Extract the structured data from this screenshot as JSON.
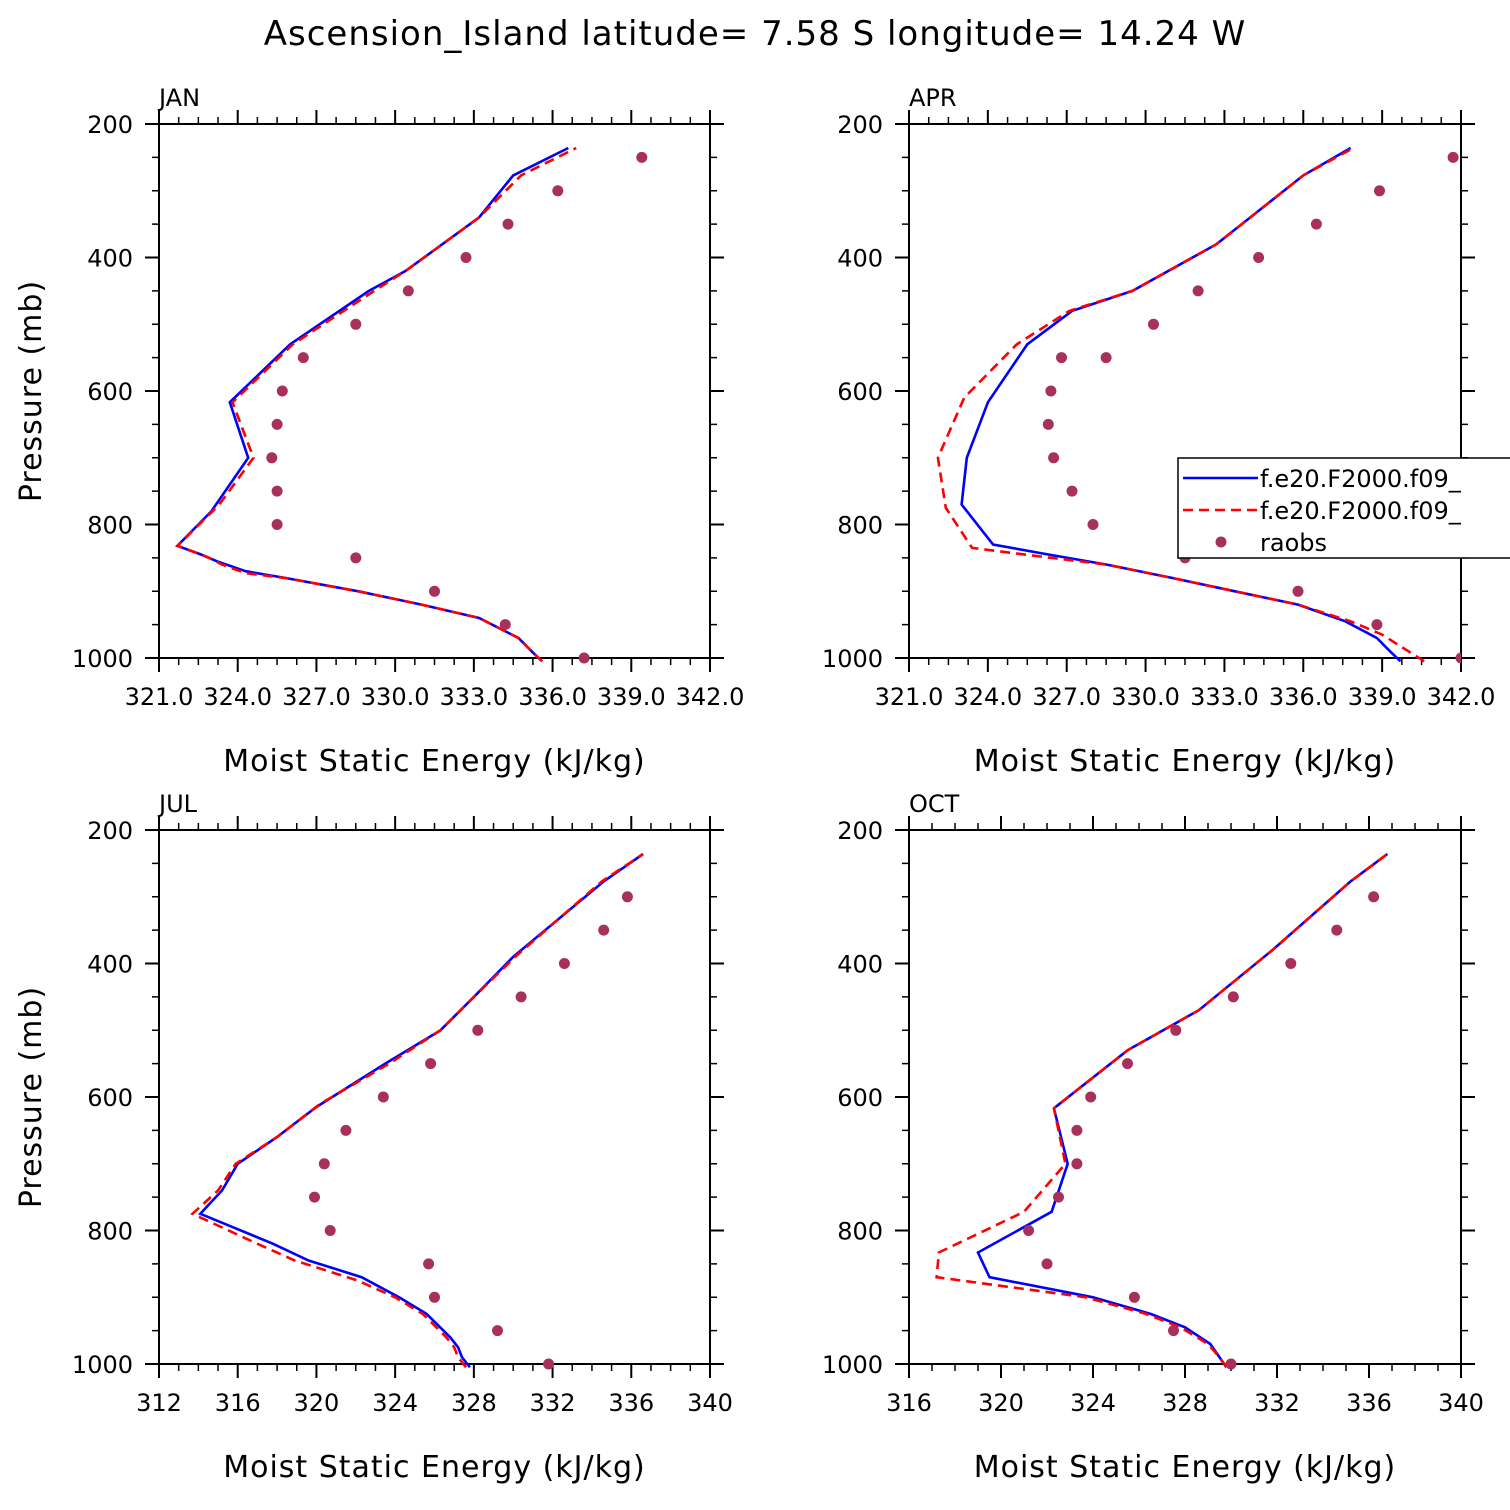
{
  "title": "Ascension_Island  latitude= 7.58 S longitude= 14.24 W",
  "colors": {
    "series1": "#0000ff",
    "series2": "#ff0000",
    "obs": "#a8305c",
    "axis": "#000000"
  },
  "legend": {
    "entries": [
      "f.e20.F2000.f09_",
      "f.e20.F2000.f09_",
      "raobs"
    ]
  },
  "chart_data": [
    {
      "type": "line",
      "title": "JAN",
      "xlabel": "Moist Static Energy (kJ/kg)",
      "ylabel": "Pressure (mb)",
      "xlim": [
        321,
        342
      ],
      "ylim": [
        1000,
        200
      ],
      "xticks": [
        321,
        324,
        327,
        330,
        333,
        336,
        339,
        342
      ],
      "xtick_labels": [
        "321.0",
        "324.0",
        "327.0",
        "330.0",
        "333.0",
        "336.0",
        "339.0",
        "342.0"
      ],
      "yticks": [
        200,
        400,
        600,
        800,
        1000
      ],
      "ytick_labels": [
        "200",
        "400",
        "600",
        "800",
        "1000"
      ],
      "series": [
        {
          "name": "f.e20.F2000.f09_",
          "style": "solid",
          "x": [
            335.6,
            335.2,
            334.7,
            333.2,
            331.0,
            328.6,
            325.8,
            324.3,
            323.2,
            322.6,
            321.7,
            323.0,
            324.4,
            323.7,
            326.0,
            329.0,
            330.4,
            331.8,
            333.2,
            334.5,
            336.6
          ],
          "p": [
            1005,
            990,
            970,
            940,
            920,
            900,
            880,
            870,
            855,
            845,
            832,
            780,
            700,
            617,
            530,
            450,
            420,
            380,
            340,
            277,
            236
          ]
        },
        {
          "name": "f.e20.F2000.f09_",
          "style": "dashed",
          "x": [
            335.6,
            335.2,
            334.7,
            333.2,
            331.0,
            328.6,
            325.8,
            324.3,
            323.4,
            322.8,
            321.7,
            323.3,
            324.6,
            323.8,
            326.1,
            329.2,
            330.4,
            331.8,
            333.2,
            334.8,
            336.9
          ],
          "p": [
            1005,
            990,
            970,
            940,
            920,
            900,
            880,
            873,
            860,
            848,
            832,
            770,
            700,
            617,
            530,
            450,
            420,
            380,
            340,
            277,
            236
          ]
        }
      ],
      "raobs": {
        "x": [
          337.2,
          334.2,
          331.5,
          328.5,
          325.5,
          325.5,
          325.3,
          325.5,
          325.7,
          326.5,
          328.5,
          330.5,
          332.7,
          334.3,
          336.2,
          339.4
        ],
        "p": [
          1000,
          950,
          900,
          850,
          800,
          750,
          700,
          650,
          600,
          550,
          500,
          450,
          400,
          350,
          300,
          250
        ]
      }
    },
    {
      "type": "line",
      "title": "APR",
      "xlabel": "Moist Static Energy (kJ/kg)",
      "ylabel": "",
      "xlim": [
        321,
        342
      ],
      "ylim": [
        1000,
        200
      ],
      "xticks": [
        321,
        324,
        327,
        330,
        333,
        336,
        339,
        342
      ],
      "xtick_labels": [
        "321.0",
        "324.0",
        "327.0",
        "330.0",
        "333.0",
        "336.0",
        "339.0",
        "342.0"
      ],
      "yticks": [
        200,
        400,
        600,
        800,
        1000
      ],
      "ytick_labels": [
        "200",
        "400",
        "600",
        "800",
        "1000"
      ],
      "series": [
        {
          "name": "f.e20.F2000.f09_",
          "style": "solid",
          "x": [
            339.7,
            339.3,
            338.8,
            337.6,
            335.8,
            333.4,
            331.0,
            328.5,
            326.3,
            324.2,
            323.0,
            323.2,
            324.0,
            325.5,
            327.2,
            329.5,
            332.7,
            336.0,
            337.8
          ],
          "p": [
            1005,
            990,
            970,
            945,
            920,
            900,
            880,
            860,
            845,
            830,
            770,
            700,
            617,
            530,
            480,
            450,
            380,
            277,
            236
          ]
        },
        {
          "name": "f.e20.F2000.f09_",
          "style": "dashed",
          "x": [
            340.6,
            339.8,
            339.0,
            337.8,
            335.8,
            333.4,
            331.0,
            328.5,
            326.0,
            323.4,
            322.4,
            322.1,
            323.1,
            325.1,
            327.1,
            329.5,
            332.7,
            336.0,
            337.9
          ],
          "p": [
            1005,
            985,
            965,
            945,
            920,
            900,
            880,
            860,
            848,
            835,
            775,
            700,
            610,
            530,
            480,
            450,
            380,
            277,
            236
          ]
        }
      ],
      "raobs": {
        "x": [
          342.0,
          338.8,
          335.8,
          331.5,
          328.0,
          327.2,
          326.5,
          326.3,
          326.4,
          326.8,
          328.5,
          330.3,
          332.0,
          334.3,
          336.5,
          338.9,
          341.7
        ],
        "p": [
          1000,
          950,
          900,
          850,
          800,
          750,
          700,
          650,
          600,
          550,
          550,
          500,
          450,
          400,
          350,
          300,
          250
        ]
      }
    },
    {
      "type": "line",
      "title": "JUL",
      "xlabel": "Moist Static Energy (kJ/kg)",
      "ylabel": "Pressure (mb)",
      "xlim": [
        312,
        340
      ],
      "ylim": [
        1000,
        200
      ],
      "xticks": [
        312,
        316,
        320,
        324,
        328,
        332,
        336,
        340
      ],
      "xtick_labels": [
        "312",
        "316",
        "320",
        "324",
        "328",
        "332",
        "336",
        "340"
      ],
      "yticks": [
        200,
        400,
        600,
        800,
        1000
      ],
      "ytick_labels": [
        "200",
        "400",
        "600",
        "800",
        "1000"
      ],
      "series": [
        {
          "name": "f.e20.F2000.f09_",
          "style": "solid",
          "x": [
            327.8,
            327.4,
            327.2,
            326.8,
            325.6,
            324.2,
            322.3,
            319.6,
            317.8,
            314.1,
            315.2,
            316.0,
            318.0,
            320.0,
            323.5,
            326.3,
            328.0,
            330.0,
            334.6,
            336.6
          ],
          "p": [
            1005,
            990,
            975,
            960,
            925,
            900,
            870,
            845,
            820,
            775,
            740,
            700,
            660,
            615,
            550,
            500,
            450,
            390,
            277,
            236
          ]
        },
        {
          "name": "f.e20.F2000.f09_",
          "style": "dashed",
          "x": [
            327.6,
            327.2,
            327.0,
            326.6,
            325.4,
            324.0,
            322.1,
            318.9,
            317.0,
            313.7,
            315.0,
            315.9,
            318.0,
            320.2,
            323.7,
            326.3,
            328.0,
            330.1,
            334.5,
            336.6
          ],
          "p": [
            1005,
            990,
            975,
            960,
            925,
            900,
            875,
            845,
            820,
            775,
            740,
            700,
            660,
            610,
            550,
            500,
            450,
            390,
            277,
            236
          ]
        }
      ],
      "raobs": {
        "x": [
          331.8,
          329.2,
          326.0,
          325.7,
          320.7,
          319.9,
          320.4,
          321.5,
          323.4,
          325.8,
          328.2,
          330.4,
          332.6,
          334.6,
          335.8
        ],
        "p": [
          1000,
          950,
          900,
          850,
          800,
          750,
          700,
          650,
          600,
          550,
          500,
          450,
          400,
          350,
          300
        ]
      }
    },
    {
      "type": "line",
      "title": "OCT",
      "xlabel": "Moist Static Energy (kJ/kg)",
      "ylabel": "",
      "xlim": [
        316,
        340
      ],
      "ylim": [
        1000,
        200
      ],
      "xticks": [
        316,
        320,
        324,
        328,
        332,
        336,
        340
      ],
      "xtick_labels": [
        "316",
        "320",
        "324",
        "328",
        "332",
        "336",
        "340"
      ],
      "yticks": [
        200,
        400,
        600,
        800,
        1000
      ],
      "ytick_labels": [
        "200",
        "400",
        "600",
        "800",
        "1000"
      ],
      "series": [
        {
          "name": "f.e20.F2000.f09_",
          "style": "solid",
          "x": [
            329.8,
            329.5,
            329.1,
            328.0,
            326.5,
            324.0,
            319.5,
            319.0,
            322.2,
            322.9,
            322.3,
            325.5,
            328.6,
            331.8,
            335.2,
            336.8
          ],
          "p": [
            1005,
            990,
            970,
            945,
            925,
            900,
            870,
            833,
            772,
            700,
            617,
            530,
            470,
            380,
            277,
            236
          ]
        },
        {
          "name": "f.e20.F2000.f09_",
          "style": "dashed",
          "x": [
            329.8,
            329.5,
            329.0,
            327.8,
            326.3,
            323.7,
            317.2,
            317.3,
            321.0,
            322.8,
            322.3,
            325.5,
            328.6,
            331.8,
            335.2,
            336.8
          ],
          "p": [
            1005,
            990,
            970,
            945,
            925,
            900,
            870,
            833,
            772,
            700,
            617,
            530,
            470,
            380,
            277,
            236
          ]
        }
      ],
      "raobs": {
        "x": [
          330.0,
          327.5,
          325.8,
          322.0,
          321.2,
          322.5,
          323.3,
          323.3,
          323.9,
          325.5,
          327.6,
          330.1,
          332.6,
          334.6,
          336.2
        ],
        "p": [
          1000,
          950,
          900,
          850,
          800,
          750,
          700,
          650,
          600,
          550,
          500,
          450,
          400,
          350,
          300
        ]
      }
    }
  ]
}
